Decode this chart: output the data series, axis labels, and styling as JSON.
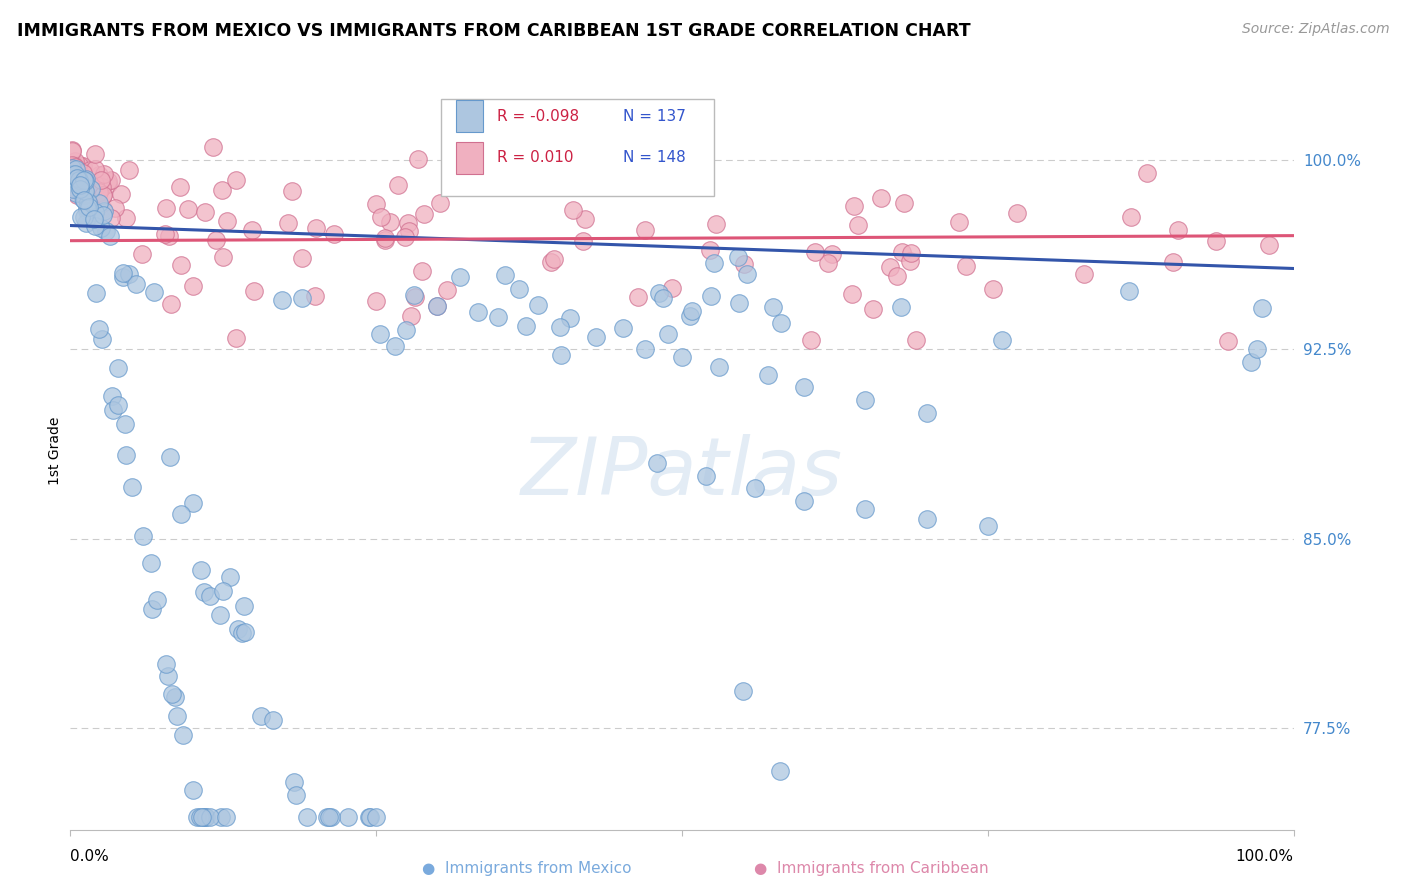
{
  "title": "IMMIGRANTS FROM MEXICO VS IMMIGRANTS FROM CARIBBEAN 1ST GRADE CORRELATION CHART",
  "source": "Source: ZipAtlas.com",
  "ylabel": "1st Grade",
  "ytick_labels": [
    "100.0%",
    "92.5%",
    "85.0%",
    "77.5%"
  ],
  "ytick_values": [
    1.0,
    0.925,
    0.85,
    0.775
  ],
  "legend_blue_r": "-0.098",
  "legend_blue_n": "137",
  "legend_pink_r": "0.010",
  "legend_pink_n": "148",
  "blue_color": "#adc6e0",
  "blue_edge_color": "#6699cc",
  "pink_color": "#f0b0c0",
  "pink_edge_color": "#d07090",
  "blue_line_color": "#3355aa",
  "pink_line_color": "#dd5577",
  "watermark": "ZIPatlas",
  "blue_trend_x": [
    0.0,
    1.0
  ],
  "blue_trend_y": [
    0.974,
    0.957
  ],
  "pink_trend_x": [
    0.0,
    1.0
  ],
  "pink_trend_y": [
    0.968,
    0.97
  ],
  "xlim": [
    0.0,
    1.0
  ],
  "ylim": [
    0.735,
    1.035
  ],
  "background_color": "#ffffff",
  "grid_color": "#cccccc",
  "title_fontsize": 12.5,
  "source_fontsize": 10,
  "tick_fontsize": 11
}
